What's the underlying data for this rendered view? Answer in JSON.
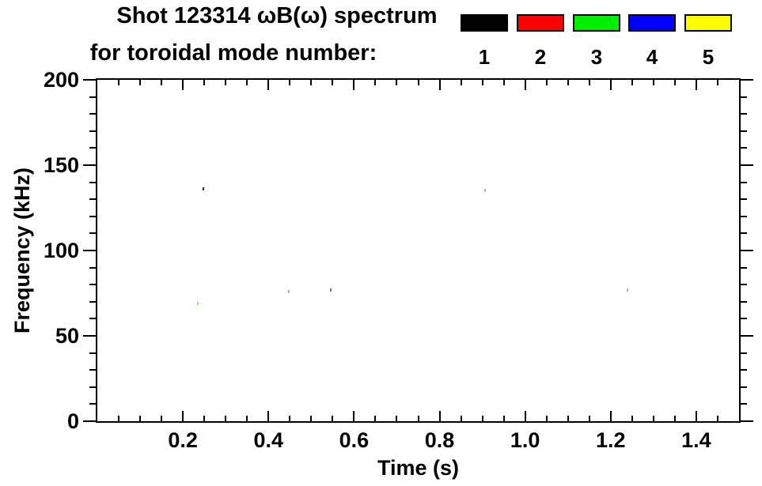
{
  "title": {
    "line1": "Shot 123314 ωB(ω) spectrum",
    "line2": "for toroidal mode number:"
  },
  "legend": {
    "items": [
      {
        "label": "1",
        "color": "#000000"
      },
      {
        "label": "2",
        "color": "#ff0000"
      },
      {
        "label": "3",
        "color": "#00ee00"
      },
      {
        "label": "4",
        "color": "#0000ff"
      },
      {
        "label": "5",
        "color": "#ffff00"
      }
    ]
  },
  "chart_data": {
    "type": "scatter",
    "title": "Shot 123314 ωB(ω) spectrum for toroidal mode number: 1 2 3 4 5",
    "xlabel": "Time (s)",
    "ylabel": "Frequency (kHz)",
    "xlim": [
      0,
      1.5
    ],
    "ylim": [
      0,
      200
    ],
    "grid": false,
    "legend_position": "top-right-above-plot",
    "x_major_ticks": [
      0.2,
      0.4,
      0.6,
      0.8,
      1.0,
      1.2,
      1.4
    ],
    "x_tick_labels": [
      "0.2",
      "0.4",
      "0.6",
      "0.8",
      "1.0",
      "1.2",
      "1.4"
    ],
    "x_minor_step": 0.05,
    "y_major_ticks": [
      200,
      150,
      100,
      50,
      0
    ],
    "y_tick_labels": [
      "200",
      "150",
      "100",
      "50",
      "0"
    ],
    "y_minor_step": 10,
    "series": [
      {
        "name": "n=1",
        "color": "#000000",
        "points": [
          {
            "t": 0.247,
            "f": 136,
            "alpha": 0.85
          },
          {
            "t": 0.447,
            "f": 76,
            "alpha": 0.3
          },
          {
            "t": 0.545,
            "f": 77,
            "alpha": 0.55
          },
          {
            "t": 0.906,
            "f": 135,
            "alpha": 0.3
          },
          {
            "t": 1.24,
            "f": 77,
            "alpha": 0.3
          }
        ]
      },
      {
        "name": "n=3",
        "color": "#00ee00",
        "points": [
          {
            "t": 0.234,
            "f": 69,
            "alpha": 0.6
          }
        ]
      }
    ]
  }
}
